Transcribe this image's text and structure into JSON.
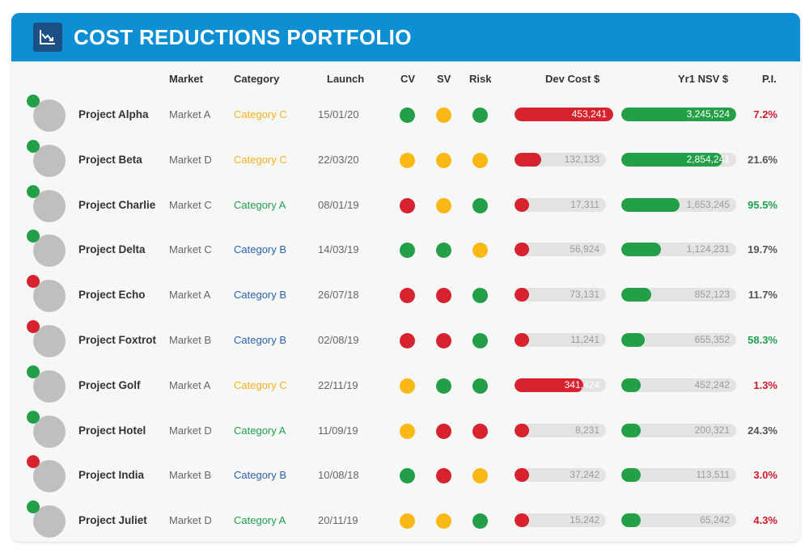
{
  "header": {
    "title": "COST REDUCTIONS PORTFOLIO",
    "logo_icon": "chart-trend-down-icon"
  },
  "columns": {
    "market": "Market",
    "category": "Category",
    "launch": "Launch",
    "cv": "CV",
    "sv": "SV",
    "risk": "Risk",
    "dev_cost": "Dev Cost $",
    "nsv": "Yr1 NSV $",
    "pi": "P.I."
  },
  "colors": {
    "green": "#23a047",
    "amber": "#f9b815",
    "red": "#d6232f",
    "category_c": "#f5b01c",
    "category_a": "#21a04f",
    "category_b": "#2f62a8",
    "pi_red": "#d2192b",
    "pi_green": "#21a04f",
    "pi_neutral": "#555555"
  },
  "scales": {
    "dev_cost_max": 453241,
    "nsv_max": 3245524
  },
  "rows": [
    {
      "name": "Project Alpha",
      "status": "green",
      "market": "Market A",
      "category": "Category C",
      "category_key": "category_c",
      "launch": "15/01/20",
      "cv": "green",
      "sv": "amber",
      "risk": "green",
      "dev_cost": 453241,
      "dev_cost_label": "453,241",
      "nsv": 3245524,
      "nsv_label": "3,245,524",
      "pi": "7.2%",
      "pi_color": "pi_red"
    },
    {
      "name": "Project Beta",
      "status": "green",
      "market": "Market D",
      "category": "Category C",
      "category_key": "category_c",
      "launch": "22/03/20",
      "cv": "amber",
      "sv": "amber",
      "risk": "amber",
      "dev_cost": 132133,
      "dev_cost_label": "132,133",
      "nsv": 2854241,
      "nsv_label": "2,854,241",
      "pi": "21.6%",
      "pi_color": "pi_neutral"
    },
    {
      "name": "Project Charlie",
      "status": "green",
      "market": "Market C",
      "category": "Category A",
      "category_key": "category_a",
      "launch": "08/01/19",
      "cv": "red",
      "sv": "amber",
      "risk": "green",
      "dev_cost": 17311,
      "dev_cost_label": "17,311",
      "nsv": 1653245,
      "nsv_label": "1,653,245",
      "pi": "95.5%",
      "pi_color": "pi_green"
    },
    {
      "name": "Project Delta",
      "status": "green",
      "market": "Market C",
      "category": "Category B",
      "category_key": "category_b",
      "launch": "14/03/19",
      "cv": "green",
      "sv": "green",
      "risk": "amber",
      "dev_cost": 56924,
      "dev_cost_label": "56,924",
      "nsv": 1124231,
      "nsv_label": "1,124,231",
      "pi": "19.7%",
      "pi_color": "pi_neutral"
    },
    {
      "name": "Project Echo",
      "status": "red",
      "market": "Market A",
      "category": "Category B",
      "category_key": "category_b",
      "launch": "26/07/18",
      "cv": "red",
      "sv": "red",
      "risk": "green",
      "dev_cost": 73131,
      "dev_cost_label": "73,131",
      "nsv": 852123,
      "nsv_label": "852,123",
      "pi": "11.7%",
      "pi_color": "pi_neutral"
    },
    {
      "name": "Project Foxtrot",
      "status": "red",
      "market": "Market B",
      "category": "Category B",
      "category_key": "category_b",
      "launch": "02/08/19",
      "cv": "red",
      "sv": "red",
      "risk": "green",
      "dev_cost": 11241,
      "dev_cost_label": "11,241",
      "nsv": 655352,
      "nsv_label": "655,352",
      "pi": "58.3%",
      "pi_color": "pi_green"
    },
    {
      "name": "Project Golf",
      "status": "green",
      "market": "Market A",
      "category": "Category C",
      "category_key": "category_c",
      "launch": "22/11/19",
      "cv": "amber",
      "sv": "green",
      "risk": "green",
      "dev_cost": 341424,
      "dev_cost_label": "341,424",
      "nsv": 452242,
      "nsv_label": "452,242",
      "pi": "1.3%",
      "pi_color": "pi_red"
    },
    {
      "name": "Project Hotel",
      "status": "green",
      "market": "Market D",
      "category": "Category A",
      "category_key": "category_a",
      "launch": "11/09/19",
      "cv": "amber",
      "sv": "red",
      "risk": "red",
      "dev_cost": 8231,
      "dev_cost_label": "8,231",
      "nsv": 200321,
      "nsv_label": "200,321",
      "pi": "24.3%",
      "pi_color": "pi_neutral"
    },
    {
      "name": "Project India",
      "status": "red",
      "market": "Market B",
      "category": "Category B",
      "category_key": "category_b",
      "launch": "10/08/18",
      "cv": "green",
      "sv": "red",
      "risk": "amber",
      "dev_cost": 37242,
      "dev_cost_label": "37,242",
      "nsv": 113511,
      "nsv_label": "113,511",
      "pi": "3.0%",
      "pi_color": "pi_red"
    },
    {
      "name": "Project Juliet",
      "status": "green",
      "market": "Market D",
      "category": "Category A",
      "category_key": "category_a",
      "launch": "20/11/19",
      "cv": "amber",
      "sv": "amber",
      "risk": "green",
      "dev_cost": 15242,
      "dev_cost_label": "15,242",
      "nsv": 65242,
      "nsv_label": "65,242",
      "pi": "4.3%",
      "pi_color": "pi_red"
    }
  ]
}
